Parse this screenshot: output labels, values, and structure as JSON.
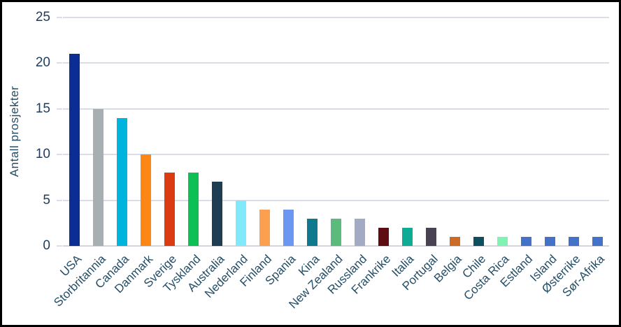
{
  "chart_data": {
    "type": "bar",
    "title": "",
    "xlabel": "",
    "ylabel": "Antall prosjekter",
    "ylim": [
      0,
      25
    ],
    "yticks": [
      0,
      5,
      10,
      15,
      20,
      25
    ],
    "grid": true,
    "legend": false,
    "categories": [
      "USA",
      "Storbritannia",
      "Canada",
      "Danmark",
      "Sverige",
      "Tyskland",
      "Australia",
      "Nederland",
      "Finland",
      "Spania",
      "Kina",
      "New Zealand",
      "Russland",
      "Frankrike",
      "Italia",
      "Portugal",
      "Belgia",
      "Chile",
      "Costa Rica",
      "Estland",
      "Island",
      "Østerrike",
      "Sør-Afrika"
    ],
    "values": [
      21,
      15,
      14,
      10,
      8,
      8,
      7,
      5,
      4,
      4,
      3,
      3,
      3,
      2,
      2,
      2,
      1,
      1,
      1,
      1,
      1,
      1,
      1
    ],
    "bar_colors": [
      "#0B2E94",
      "#A8AFB3",
      "#00B4DE",
      "#FC8714",
      "#DA3B10",
      "#0EBF55",
      "#1F3D52",
      "#81E9FC",
      "#FAA04E",
      "#6B97F2",
      "#0F7A8D",
      "#5CBA7D",
      "#A2AAC4",
      "#5E0E13",
      "#0FAB95",
      "#484253",
      "#CD6A26",
      "#0D4F5E",
      "#80F2B3",
      "#4472C8",
      "#4472C8",
      "#4472C8",
      "#4472C8"
    ]
  },
  "styles": {
    "background": "#FFFFFF",
    "frame_border_color": "#000000",
    "gridline_color": "#D8DDE6",
    "axis_line_color": "#D2D6DC",
    "tick_text_color": "#1F3C5E",
    "label_text_color": "#234E68"
  }
}
